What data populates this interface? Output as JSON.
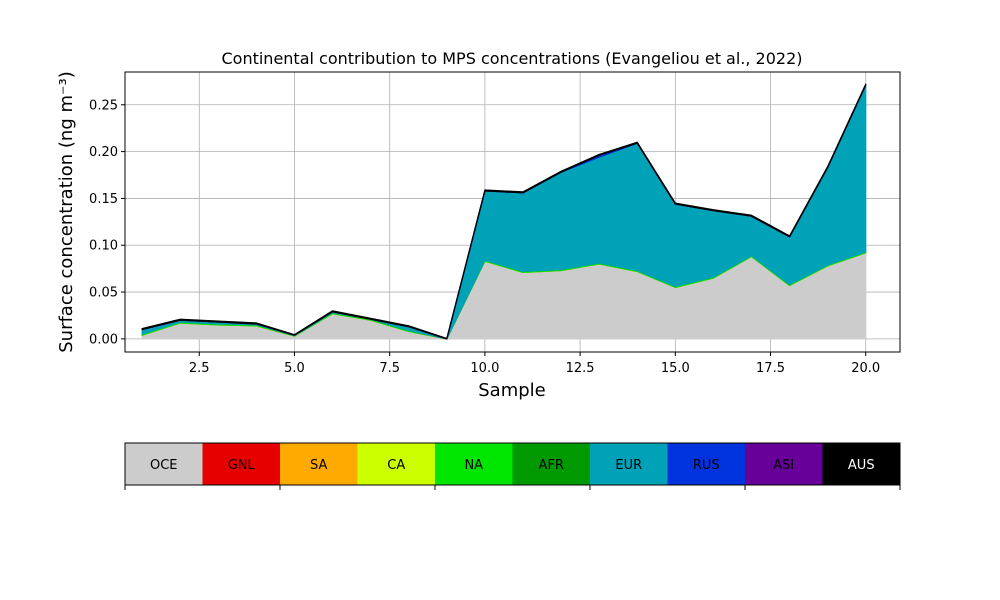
{
  "chart_data": {
    "type": "area",
    "title": "Continental contribution to MPS concentrations (Evangeliou et al., 2022)",
    "xlabel": "Sample",
    "ylabel": "Surface concentration (ng m⁻³)",
    "xlim": [
      0.55,
      20.9
    ],
    "ylim": [
      -0.014,
      0.285
    ],
    "xticks": [
      "2.5",
      "5.0",
      "7.5",
      "10.0",
      "12.5",
      "15.0",
      "17.5",
      "20.0"
    ],
    "xtick_values": [
      2.5,
      5.0,
      7.5,
      10.0,
      12.5,
      15.0,
      17.5,
      20.0
    ],
    "yticks": [
      "0.00",
      "0.05",
      "0.10",
      "0.15",
      "0.20",
      "0.25"
    ],
    "ytick_values": [
      0.0,
      0.05,
      0.1,
      0.15,
      0.2,
      0.25
    ],
    "grid": true,
    "legend_position": "below",
    "x": [
      1,
      2,
      3,
      4,
      5,
      6,
      7,
      8,
      9,
      10,
      11,
      12,
      13,
      14,
      15,
      16,
      17,
      18,
      19,
      20
    ],
    "series": [
      {
        "name": "OCE",
        "color": "#cccccc",
        "values": [
          0.004,
          0.017,
          0.015,
          0.014,
          0.003,
          0.027,
          0.02,
          0.008,
          0.0,
          0.083,
          0.071,
          0.073,
          0.08,
          0.072,
          0.055,
          0.065,
          0.088,
          0.057,
          0.078,
          0.092
        ]
      },
      {
        "name": "GNL",
        "color": "#e60000",
        "values": [
          0,
          0,
          0,
          0,
          0,
          0,
          0,
          0,
          0,
          0,
          0,
          0,
          0,
          0,
          0,
          0,
          0,
          0,
          0,
          0
        ]
      },
      {
        "name": "SA",
        "color": "#ffaa00",
        "values": [
          0,
          0,
          0,
          0,
          0,
          0,
          0,
          0,
          0,
          0,
          0,
          0,
          0,
          0,
          0,
          0,
          0,
          0,
          0,
          0
        ]
      },
      {
        "name": "CA",
        "color": "#ccff00",
        "values": [
          0,
          0,
          0,
          0,
          0,
          0,
          0,
          0,
          0,
          0,
          0,
          0,
          0,
          0,
          0,
          0,
          0,
          0,
          0,
          0
        ]
      },
      {
        "name": "NA",
        "color": "#00e600",
        "values": [
          0.001,
          0.001,
          0.001,
          0.001,
          0.0005,
          0.001,
          0.001,
          0.001,
          0.0,
          0.001,
          0.001,
          0.001,
          0.001,
          0.001,
          0.001,
          0.001,
          0.001,
          0.001,
          0.001,
          0.001
        ]
      },
      {
        "name": "AFR",
        "color": "#009900",
        "values": [
          0,
          0,
          0,
          0,
          0,
          0,
          0,
          0,
          0,
          0,
          0,
          0,
          0,
          0,
          0,
          0,
          0,
          0,
          0,
          0
        ]
      },
      {
        "name": "EUR",
        "color": "#00a2b8",
        "values": [
          0.005,
          0.002,
          0.002,
          0.001,
          0.0005,
          0.001,
          0.0,
          0.004,
          0.0,
          0.074,
          0.084,
          0.104,
          0.113,
          0.136,
          0.088,
          0.071,
          0.042,
          0.051,
          0.104,
          0.178
        ]
      },
      {
        "name": "RUS",
        "color": "#0033dd",
        "values": [
          0.0,
          0.0,
          0.0,
          0.0,
          0.0,
          0.0,
          0.0,
          0.0,
          0.0,
          0.0,
          0.0,
          0.0,
          0.002,
          0.0,
          0.0,
          0.0,
          0.0,
          0.0,
          0.0,
          0.0
        ]
      },
      {
        "name": "ASI",
        "color": "#660099",
        "values": [
          0,
          0,
          0,
          0,
          0,
          0,
          0,
          0,
          0,
          0,
          0,
          0,
          0,
          0,
          0,
          0,
          0,
          0,
          0,
          0
        ]
      },
      {
        "name": "AUS",
        "color": "#000000",
        "values": [
          0.001,
          0.001,
          0.001,
          0.001,
          0.0005,
          0.001,
          0.001,
          0.001,
          0.0005,
          0.001,
          0.001,
          0.001,
          0.001,
          0.001,
          0.001,
          0.001,
          0.001,
          0.001,
          0.001,
          0.001
        ]
      }
    ]
  }
}
